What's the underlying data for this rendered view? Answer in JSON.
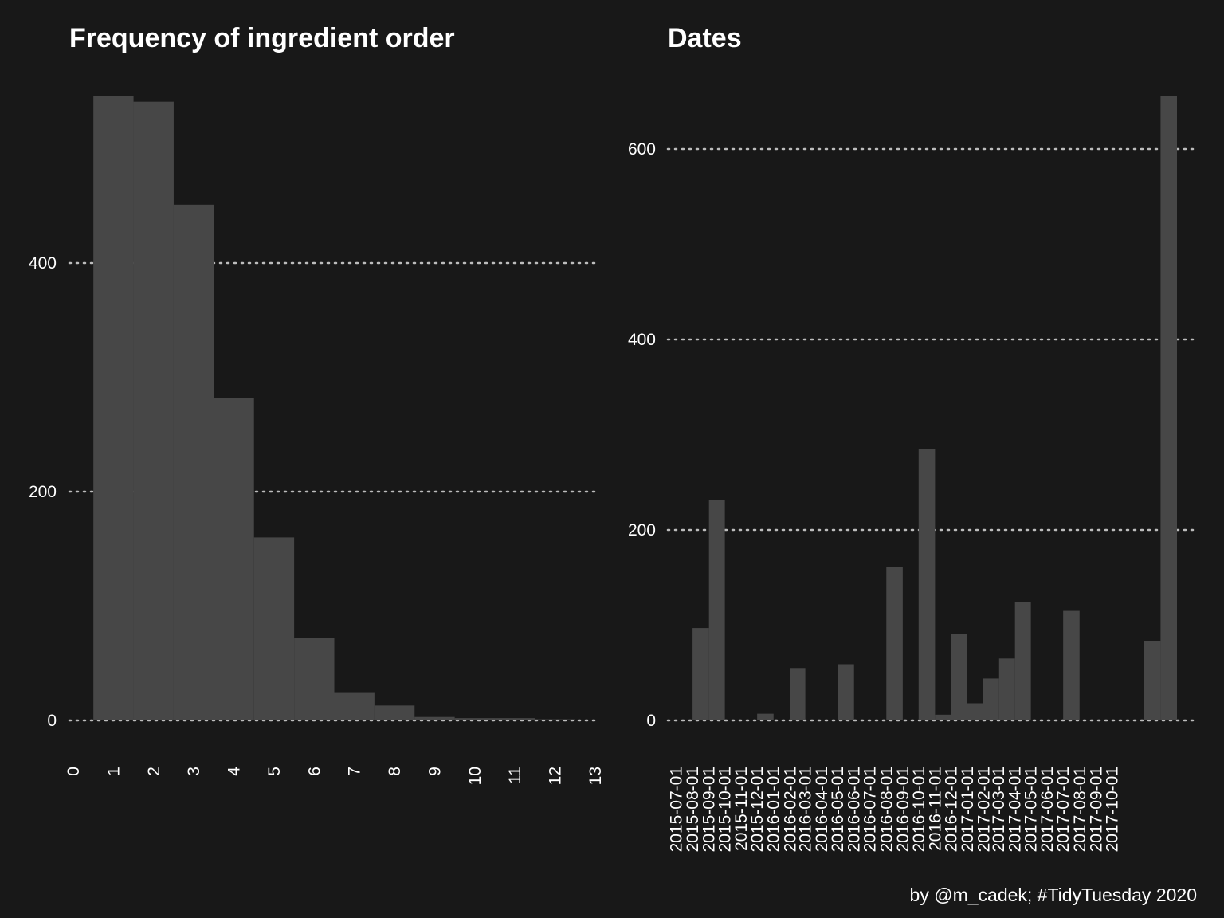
{
  "background": "#181818",
  "bar_color": "#474747",
  "grid_color": "#bdbdbd",
  "text_color": "#ffffff",
  "caption": "by @m_cadek; #TidyTuesday 2020",
  "chart_data": [
    {
      "type": "bar",
      "title": "Frequency of ingredient order",
      "xlabel": "",
      "ylabel": "",
      "x_ticks": [
        "0",
        "1",
        "2",
        "3",
        "4",
        "5",
        "6",
        "7",
        "8",
        "9",
        "10",
        "11",
        "12",
        "13"
      ],
      "y_ticks": [
        "0",
        "200",
        "400"
      ],
      "xlim": [
        0,
        13
      ],
      "ylim": [
        0,
        545
      ],
      "grid": "horizontal dotted",
      "categories": [
        "1",
        "2",
        "3",
        "4",
        "5",
        "6",
        "7",
        "8",
        "9",
        "10",
        "11",
        "12"
      ],
      "values": [
        546,
        541,
        451,
        282,
        160,
        72,
        24,
        13,
        3,
        2,
        2,
        1
      ]
    },
    {
      "type": "bar",
      "title": "Dates",
      "xlabel": "",
      "ylabel": "",
      "y_ticks": [
        "0",
        "200",
        "400",
        "600"
      ],
      "ylim": [
        0,
        660
      ],
      "grid": "horizontal dotted",
      "categories": [
        "2015-07-01",
        "2015-08-01",
        "2015-09-01",
        "2015-10-01",
        "2015-11-01",
        "2015-12-01",
        "2016-01-01",
        "2016-02-01",
        "2016-03-01",
        "2016-04-01",
        "2016-05-01",
        "2016-06-01",
        "2016-07-01",
        "2016-08-01",
        "2016-09-01",
        "2016-10-01",
        "2016-11-01",
        "2016-12-01",
        "2017-01-01",
        "2017-02-01",
        "2017-03-01",
        "2017-04-01",
        "2017-05-01",
        "2017-06-01",
        "2017-07-01",
        "2017-08-01",
        "2017-09-01",
        "2017-10-01"
      ],
      "bins": [
        {
          "from": "2015-07-01",
          "to": "2015-08-01",
          "value": 0
        },
        {
          "from": "2015-08-01",
          "to": "2015-09-01",
          "value": 97
        },
        {
          "from": "2015-09-01",
          "to": "2015-10-01",
          "value": 231
        },
        {
          "from": "2015-10-01",
          "to": "2015-11-01",
          "value": 0
        },
        {
          "from": "2015-11-01",
          "to": "2015-12-01",
          "value": 0
        },
        {
          "from": "2015-12-01",
          "to": "2016-01-01",
          "value": 7
        },
        {
          "from": "2016-01-01",
          "to": "2016-02-01",
          "value": 0
        },
        {
          "from": "2016-02-01",
          "to": "2016-03-01",
          "value": 55
        },
        {
          "from": "2016-03-01",
          "to": "2016-04-01",
          "value": 0
        },
        {
          "from": "2016-04-01",
          "to": "2016-05-01",
          "value": 0
        },
        {
          "from": "2016-05-01",
          "to": "2016-06-01",
          "value": 59
        },
        {
          "from": "2016-06-01",
          "to": "2016-07-01",
          "value": 0
        },
        {
          "from": "2016-07-01",
          "to": "2016-08-01",
          "value": 0
        },
        {
          "from": "2016-08-01",
          "to": "2016-09-01",
          "value": 161
        },
        {
          "from": "2016-09-01",
          "to": "2016-10-01",
          "value": 0
        },
        {
          "from": "2016-10-01",
          "to": "2016-11-01",
          "value": 285
        },
        {
          "from": "2016-11-01",
          "to": "2016-12-01",
          "value": 6
        },
        {
          "from": "2016-12-01",
          "to": "2017-01-01",
          "value": 91
        },
        {
          "from": "2017-01-01",
          "to": "2017-01-31",
          "value": 18
        },
        {
          "from": "2017-01-31",
          "to": "2017-03-02",
          "value": 44
        },
        {
          "from": "2017-03-02",
          "to": "2017-04-01",
          "value": 65
        },
        {
          "from": "2017-04-01",
          "to": "2017-05-01",
          "value": 124
        },
        {
          "from": "2017-05-01",
          "to": "2017-06-01",
          "value": 0
        },
        {
          "from": "2017-06-01",
          "to": "2017-07-01",
          "value": 0
        },
        {
          "from": "2017-07-01",
          "to": "2017-08-01",
          "value": 115
        },
        {
          "from": "2017-08-01",
          "to": "2017-09-01",
          "value": 0
        },
        {
          "from": "2017-09-01",
          "to": "2017-10-01",
          "value": 0
        },
        {
          "from": "2017-10-01",
          "to": "2017-11-01",
          "value": 0
        },
        {
          "from": "2017-11-01",
          "to": "2017-12-01",
          "value": 0
        },
        {
          "from": "2017-12-01",
          "to": "2018-01-01",
          "value": 83
        },
        {
          "from": "2018-01-01",
          "to": "2018-02-01",
          "value": 656
        }
      ]
    }
  ]
}
